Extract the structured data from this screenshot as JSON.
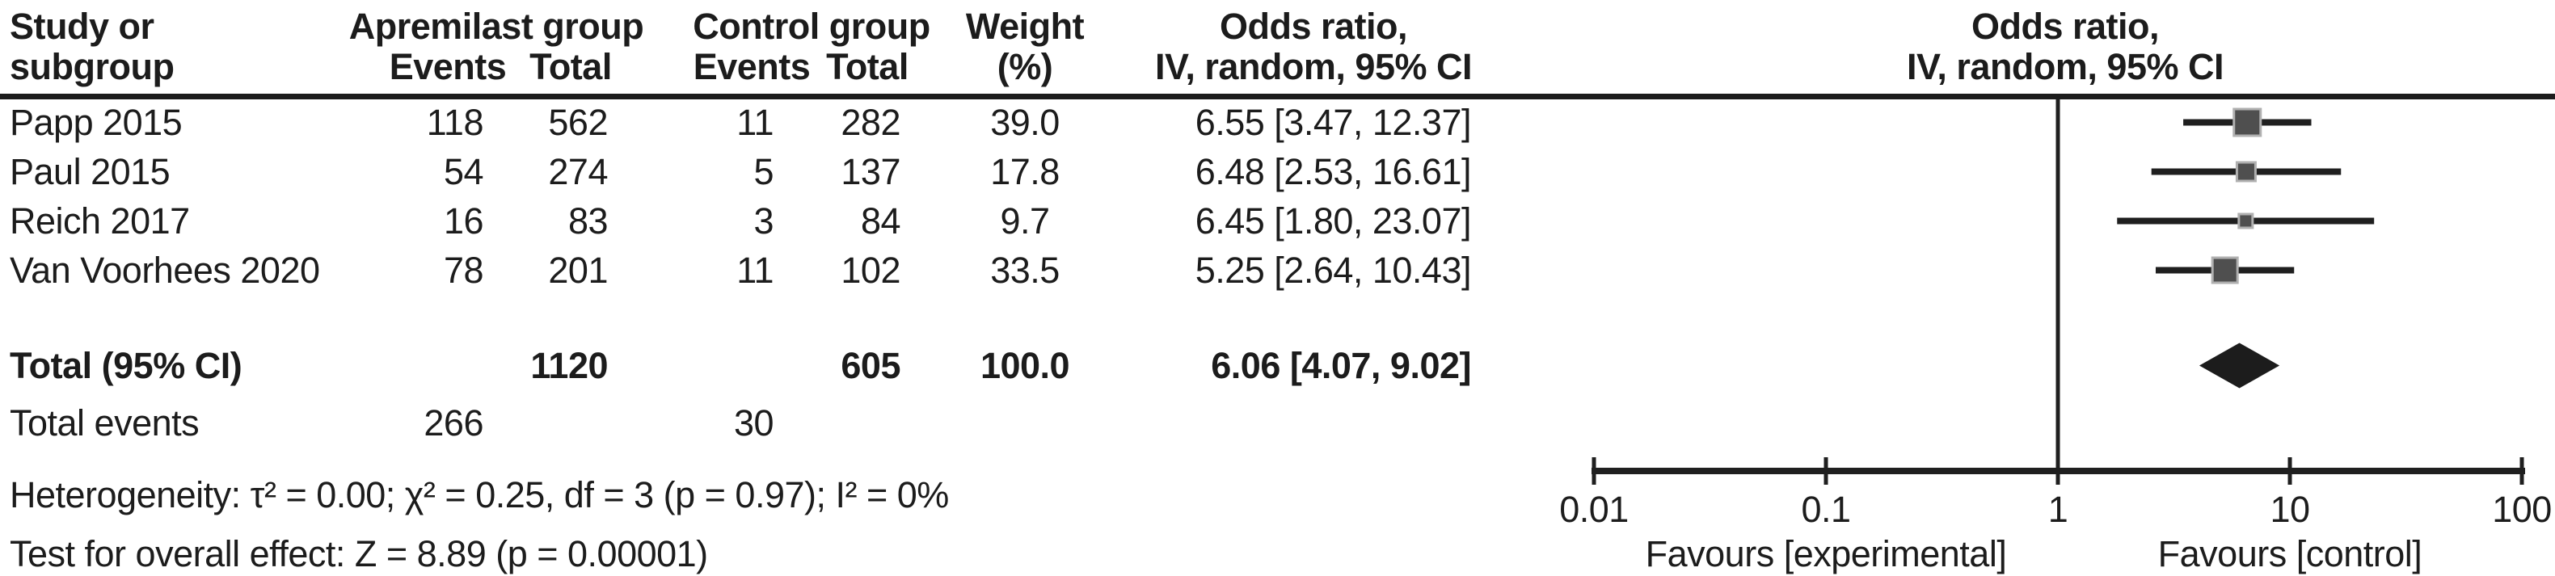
{
  "header": {
    "study_line1": "Study or",
    "study_line2": "subgroup",
    "group1": "Apremilast group",
    "group2": "Control group",
    "events": "Events",
    "total": "Total",
    "weight_line1": "Weight",
    "weight_line2": "(%)",
    "or_line1": "Odds ratio,",
    "or_line2": "IV, random, 95% CI",
    "plot_line1": "Odds ratio,",
    "plot_line2": "IV, random, 95% CI"
  },
  "chart_data": {
    "type": "forest",
    "x_scale": "log10",
    "x_range": [
      0.01,
      100
    ],
    "x_ticks": [
      "0.01",
      "0.1",
      "1",
      "10",
      "100"
    ],
    "favours_left": "Favours [experimental]",
    "favours_right": "Favours [control]",
    "studies": [
      {
        "name": "Papp 2015",
        "group1_events": "118",
        "group1_total": "562",
        "group2_events": "11",
        "group2_total": "282",
        "weight_pct": "39.0",
        "or_ci_text": "6.55 [3.47, 12.37]",
        "or": 6.55,
        "ci_low": 3.47,
        "ci_high": 12.37,
        "weight": 39.0
      },
      {
        "name": "Paul 2015",
        "group1_events": "54",
        "group1_total": "274",
        "group2_events": "5",
        "group2_total": "137",
        "weight_pct": "17.8",
        "or_ci_text": "6.48 [2.53, 16.61]",
        "or": 6.48,
        "ci_low": 2.53,
        "ci_high": 16.61,
        "weight": 17.8
      },
      {
        "name": "Reich 2017",
        "group1_events": "16",
        "group1_total": "83",
        "group2_events": "3",
        "group2_total": "84",
        "weight_pct": "9.7",
        "or_ci_text": "6.45 [1.80, 23.07]",
        "or": 6.45,
        "ci_low": 1.8,
        "ci_high": 23.07,
        "weight": 9.7
      },
      {
        "name": "Van Voorhees 2020",
        "group1_events": "78",
        "group1_total": "201",
        "group2_events": "11",
        "group2_total": "102",
        "weight_pct": "33.5",
        "or_ci_text": "5.25 [2.64, 10.43]",
        "or": 5.25,
        "ci_low": 2.64,
        "ci_high": 10.43,
        "weight": 33.5
      }
    ],
    "total": {
      "label": "Total (95% CI)",
      "group1_total": "1120",
      "group2_total": "605",
      "weight_pct": "100.0",
      "or_ci_text": "6.06 [4.07, 9.02]",
      "or": 6.06,
      "ci_low": 4.07,
      "ci_high": 9.02
    },
    "total_events": {
      "label": "Total events",
      "group1_events": "266",
      "group2_events": "30"
    },
    "heterogeneity": "Heterogeneity: τ² = 0.00; χ² = 0.25, df = 3 (p = 0.97); I² = 0%",
    "overall_test": "Test for overall effect: Z = 8.89 (p = 0.00001)"
  },
  "colors": {
    "text": "#1c1c1c",
    "line": "#1f1f1f",
    "marker_fill": "#4f4f4f",
    "marker_stroke": "#b0b0b0",
    "diamond": "#1c1c1c"
  }
}
